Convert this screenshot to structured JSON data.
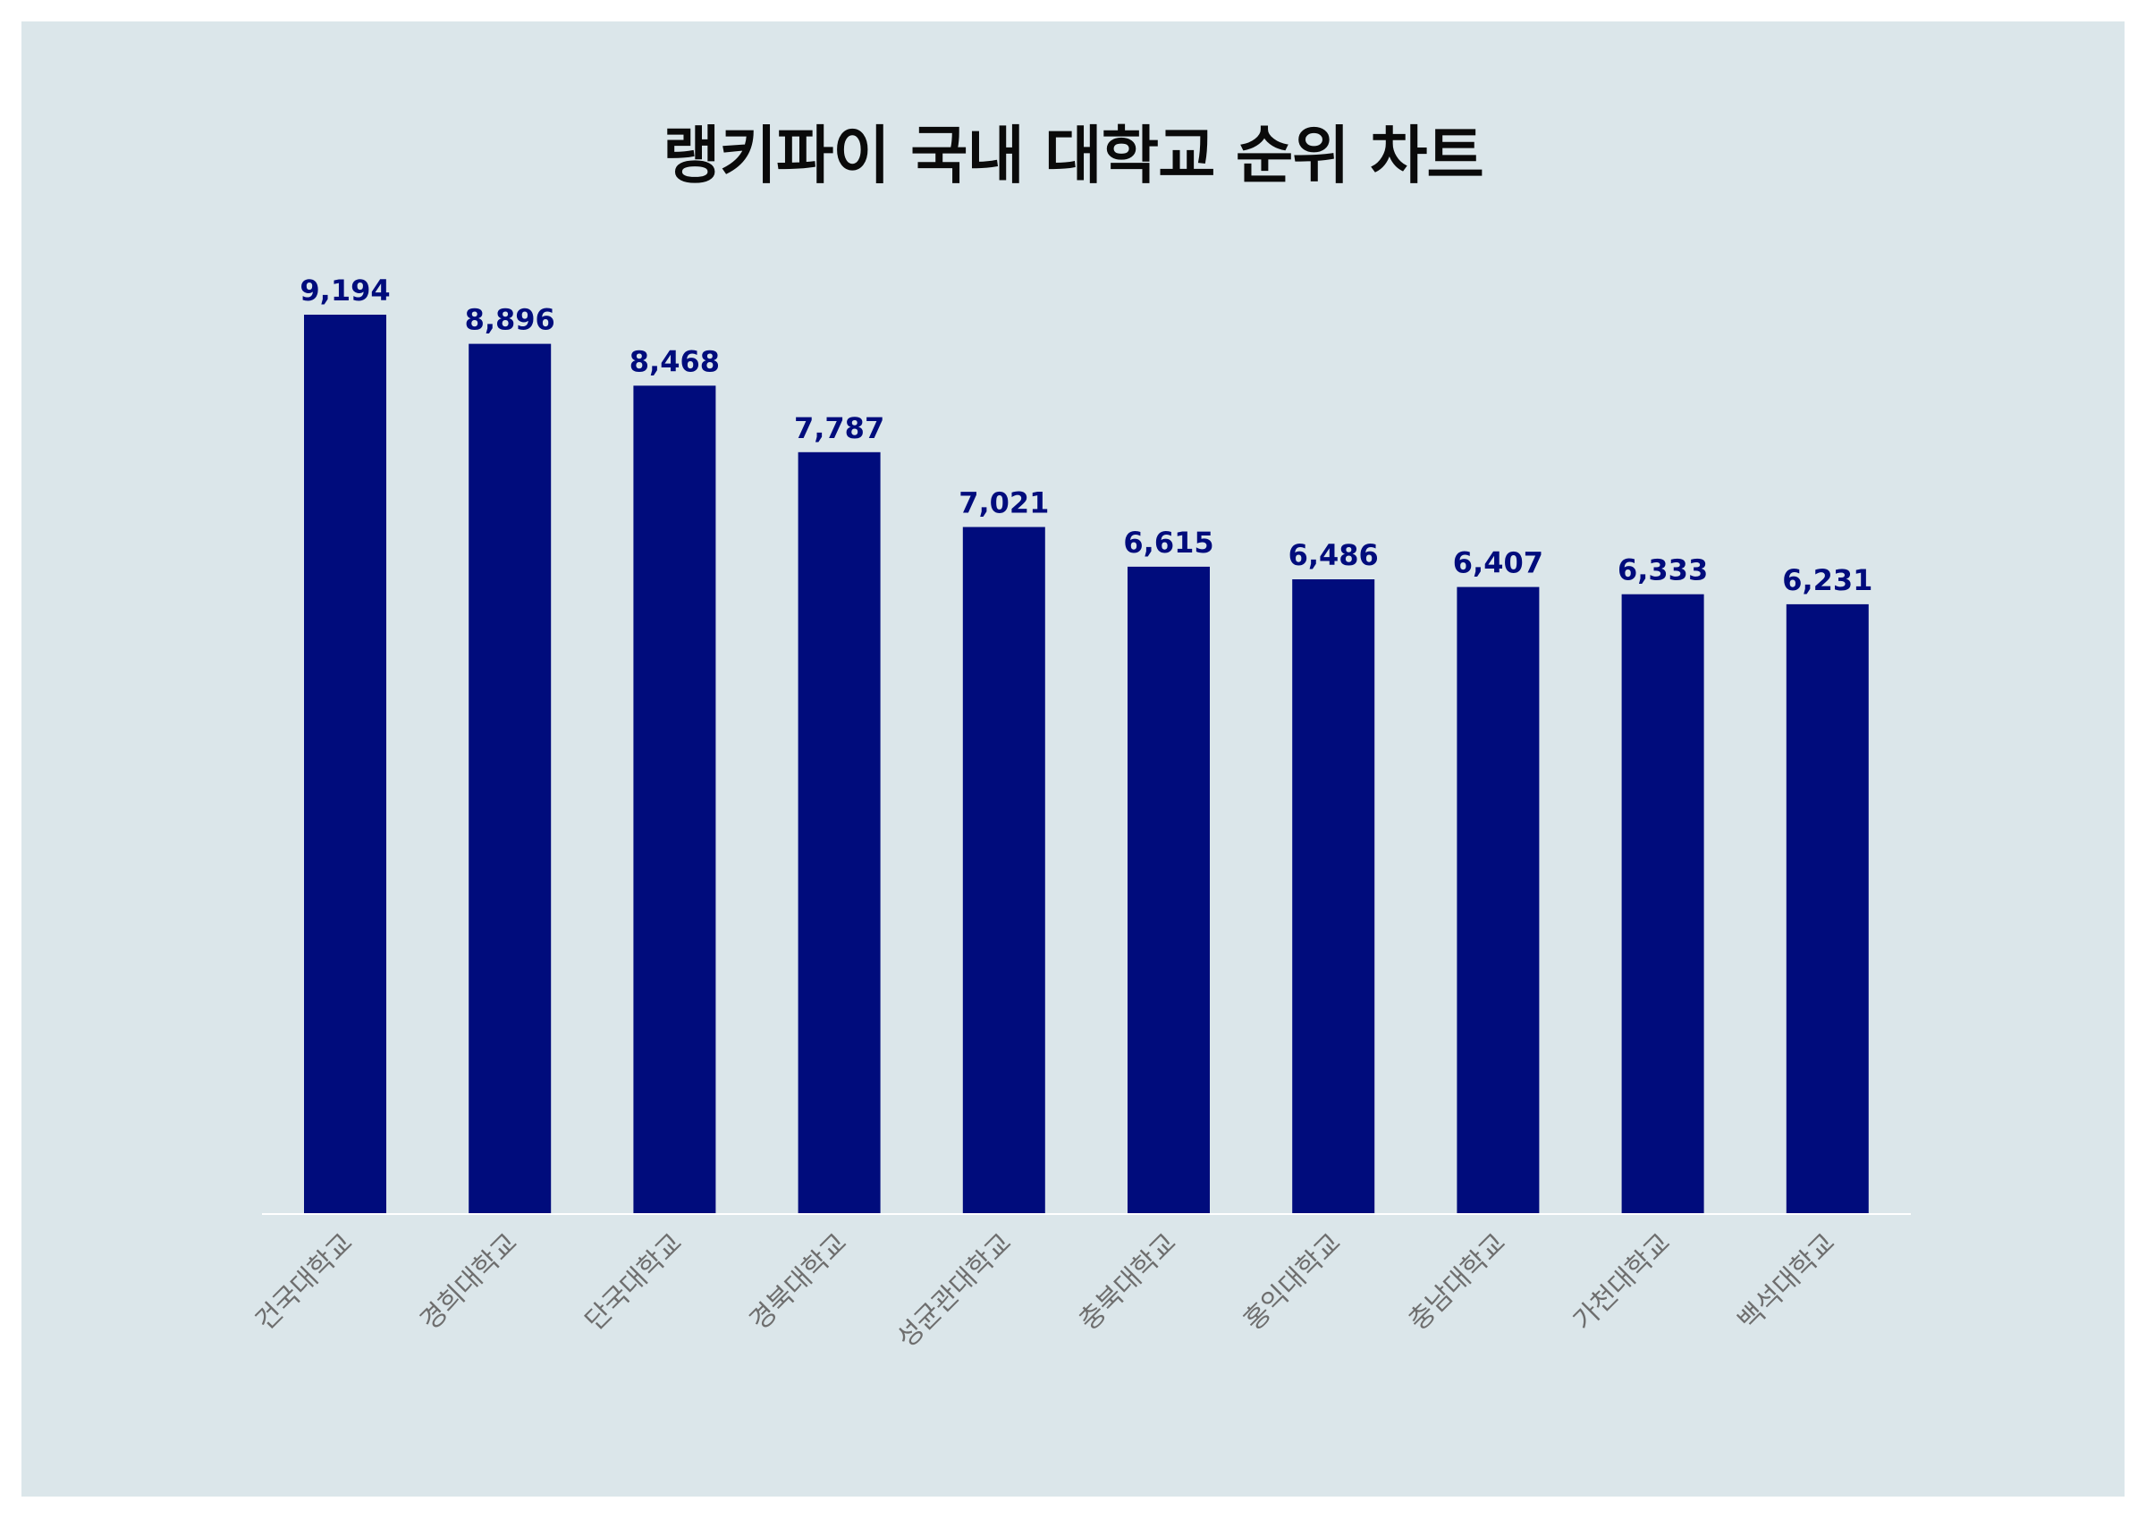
{
  "chart_data": {
    "type": "bar",
    "title": "랭키파이 국내 대학교 순위 차트",
    "xlabel": "",
    "ylabel": "",
    "categories": [
      "건국대학교",
      "경희대학교",
      "단국대학교",
      "경북대학교",
      "성균관대학교",
      "충북대학교",
      "홍익대학교",
      "충남대학교",
      "가천대학교",
      "백석대학교"
    ],
    "values": [
      9194,
      8896,
      8468,
      7787,
      7021,
      6615,
      6486,
      6407,
      6333,
      6231
    ],
    "data_labels": [
      "9,194",
      "8,896",
      "8,468",
      "7,787",
      "7,021",
      "6,615",
      "6,486",
      "6,407",
      "6,333",
      "6,231"
    ],
    "ylim": [
      0,
      9900
    ],
    "grid": false,
    "legend": "none",
    "colors": {
      "bar": "#000c7c",
      "value_label": "#000c7c",
      "tick_label": "#6e6e6e",
      "background": "#dbe6ea",
      "axis_line": "#ffffff"
    }
  }
}
